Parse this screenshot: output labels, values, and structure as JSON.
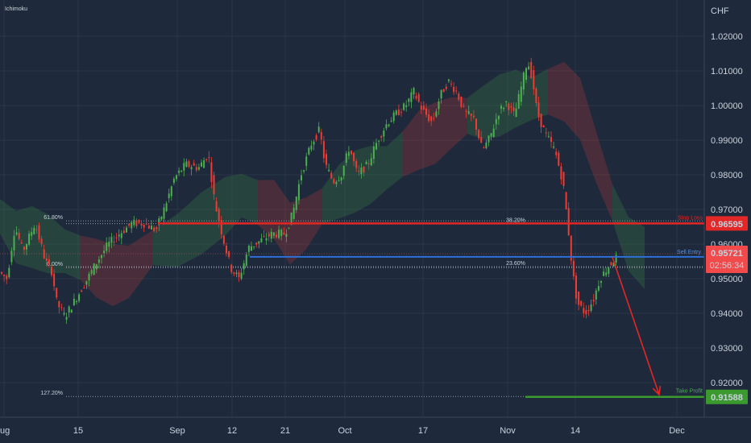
{
  "indicator_label": "Ichimoku",
  "chart_data": {
    "type": "candlestick",
    "currency_label": "CHF",
    "y_range": [
      0.912,
      1.027
    ],
    "y_ticks": [
      "1.02000",
      "1.01000",
      "1.00000",
      "0.99000",
      "0.98000",
      "0.97000",
      "0.96000",
      "0.95000",
      "0.94000",
      "0.93000",
      "0.92000"
    ],
    "x_ticks": [
      "ug",
      "15",
      "Sep",
      "12",
      "21",
      "Oct",
      "17",
      "Nov",
      "14",
      "Dec"
    ],
    "price_path": [
      [
        0,
        0.952
      ],
      [
        10,
        0.95
      ],
      [
        20,
        0.965
      ],
      [
        30,
        0.958
      ],
      [
        45,
        0.966
      ],
      [
        58,
        0.955
      ],
      [
        66,
        0.952
      ],
      [
        72,
        0.943
      ],
      [
        82,
        0.939
      ],
      [
        95,
        0.944
      ],
      [
        110,
        0.95
      ],
      [
        122,
        0.955
      ],
      [
        136,
        0.96
      ],
      [
        150,
        0.963
      ],
      [
        165,
        0.966
      ],
      [
        180,
        0.966
      ],
      [
        195,
        0.964
      ],
      [
        205,
        0.97
      ],
      [
        218,
        0.979
      ],
      [
        232,
        0.983
      ],
      [
        248,
        0.982
      ],
      [
        260,
        0.986
      ],
      [
        268,
        0.972
      ],
      [
        278,
        0.962
      ],
      [
        288,
        0.953
      ],
      [
        298,
        0.95
      ],
      [
        310,
        0.959
      ],
      [
        325,
        0.961
      ],
      [
        340,
        0.963
      ],
      [
        355,
        0.963
      ],
      [
        365,
        0.969
      ],
      [
        375,
        0.98
      ],
      [
        388,
        0.989
      ],
      [
        398,
        0.993
      ],
      [
        405,
        0.983
      ],
      [
        415,
        0.978
      ],
      [
        425,
        0.98
      ],
      [
        435,
        0.988
      ],
      [
        445,
        0.98
      ],
      [
        458,
        0.983
      ],
      [
        470,
        0.99
      ],
      [
        482,
        0.995
      ],
      [
        495,
        0.998
      ],
      [
        505,
        1.0
      ],
      [
        515,
        1.004
      ],
      [
        525,
        0.999
      ],
      [
        538,
        0.995
      ],
      [
        548,
        1.003
      ],
      [
        558,
        1.007
      ],
      [
        568,
        1.004
      ],
      [
        578,
        0.998
      ],
      [
        590,
        0.996
      ],
      [
        600,
        0.987
      ],
      [
        610,
        0.991
      ],
      [
        620,
        0.998
      ],
      [
        630,
        1.001
      ],
      [
        640,
        0.997
      ],
      [
        650,
        1.007
      ],
      [
        656,
        1.013
      ],
      [
        662,
        1.008
      ],
      [
        668,
        0.998
      ],
      [
        678,
        0.992
      ],
      [
        690,
        0.987
      ],
      [
        700,
        0.978
      ],
      [
        706,
        0.966
      ],
      [
        712,
        0.952
      ],
      [
        718,
        0.943
      ],
      [
        728,
        0.94
      ],
      [
        738,
        0.944
      ],
      [
        746,
        0.95
      ],
      [
        755,
        0.953
      ],
      [
        765,
        0.956
      ]
    ],
    "cloud_path": [
      [
        0,
        0.968
      ],
      [
        20,
        0.962
      ],
      [
        40,
        0.962
      ],
      [
        60,
        0.96
      ],
      [
        80,
        0.958
      ],
      [
        100,
        0.956
      ],
      [
        120,
        0.953
      ],
      [
        140,
        0.951
      ],
      [
        160,
        0.952
      ],
      [
        190,
        0.959
      ],
      [
        220,
        0.961
      ],
      [
        250,
        0.966
      ],
      [
        280,
        0.971
      ],
      [
        300,
        0.974
      ],
      [
        320,
        0.972
      ],
      [
        340,
        0.97
      ],
      [
        360,
        0.963
      ],
      [
        380,
        0.966
      ],
      [
        400,
        0.971
      ],
      [
        420,
        0.975
      ],
      [
        440,
        0.978
      ],
      [
        460,
        0.98
      ],
      [
        480,
        0.982
      ],
      [
        500,
        0.986
      ],
      [
        520,
        0.99
      ],
      [
        540,
        0.992
      ],
      [
        560,
        0.995
      ],
      [
        580,
        0.997
      ],
      [
        600,
        0.998
      ],
      [
        620,
        1.0
      ],
      [
        640,
        1.002
      ],
      [
        660,
        1.002
      ],
      [
        680,
        1.004
      ],
      [
        700,
        1.004
      ],
      [
        720,
        0.999
      ],
      [
        740,
        0.985
      ],
      [
        760,
        0.972
      ],
      [
        780,
        0.96
      ],
      [
        800,
        0.956
      ]
    ],
    "projection": {
      "from": [
        760,
        0.9562
      ],
      "to": [
        818,
        0.9165
      ]
    },
    "levels": [
      {
        "name": "stop-loss",
        "label": "Stop Loss",
        "value": 0.96595,
        "price_tag": "0.96595",
        "color": "#e32626"
      },
      {
        "name": "sell-entry",
        "label": "Sell Entry",
        "value": 0.9563,
        "color": "#2e6fd8"
      },
      {
        "name": "take-profit",
        "label": "Take Profit",
        "value": 0.91588,
        "price_tag": "0.91588",
        "color": "#3a9a2e"
      }
    ],
    "fib_levels": [
      {
        "label": "61.80%",
        "value": 0.9667
      },
      {
        "label": "38.20%",
        "value": 0.9659
      },
      {
        "label": "23.60%",
        "value": 0.9535
      },
      {
        "label": "0.00%",
        "value": 0.9532
      },
      {
        "label": "127.20%",
        "value": 0.916
      }
    ],
    "current_price": {
      "value": 0.95721,
      "label": "0.95721",
      "countdown": "02:56:34",
      "color": "#f24a4a"
    }
  }
}
